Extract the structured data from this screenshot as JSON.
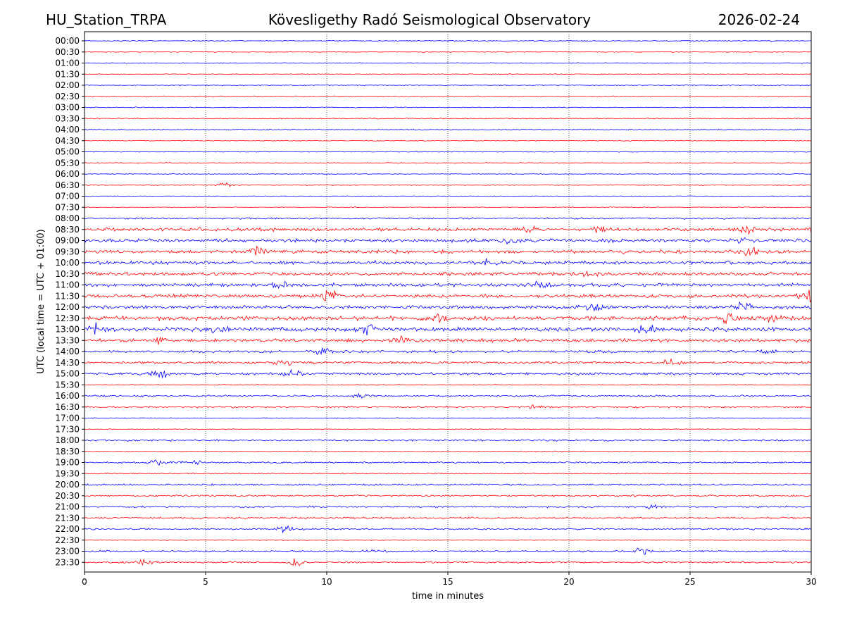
{
  "header": {
    "station": "HU_Station_TRPA",
    "observatory": "Kövesligethy Radó Seismological Observatory",
    "date": "2026-02-24"
  },
  "chart_data": {
    "type": "line",
    "title": "Kövesligethy Radó Seismological Observatory",
    "xlabel": "time in minutes",
    "ylabel": "UTC (local time = UTC + 01:00)",
    "xlim": [
      0,
      30
    ],
    "x_ticks": [
      "0",
      "5",
      "10",
      "15",
      "20",
      "25",
      "30"
    ],
    "x_tick_values": [
      0,
      5,
      10,
      15,
      20,
      25,
      30
    ],
    "grid": "vertical dotted lines at 5-minute ticks",
    "series_colors": [
      "#0000ff",
      "#ff0000"
    ],
    "row_labels": [
      "00:00",
      "00:30",
      "01:00",
      "01:30",
      "02:00",
      "02:30",
      "03:00",
      "03:30",
      "04:00",
      "04:30",
      "05:00",
      "05:30",
      "06:00",
      "06:30",
      "07:00",
      "07:30",
      "08:00",
      "08:30",
      "09:00",
      "09:30",
      "10:00",
      "10:30",
      "11:00",
      "11:30",
      "12:00",
      "12:30",
      "13:00",
      "13:30",
      "14:00",
      "14:30",
      "15:00",
      "15:30",
      "16:00",
      "16:30",
      "17:00",
      "17:30",
      "18:00",
      "18:30",
      "19:00",
      "19:30",
      "20:00",
      "20:30",
      "21:00",
      "21:30",
      "22:00",
      "22:30",
      "23:00",
      "23:30"
    ],
    "row_activity": [
      1,
      1,
      1,
      1,
      1,
      1,
      1,
      1,
      1,
      1,
      1,
      1,
      1,
      1,
      1,
      1,
      2,
      4,
      4,
      4,
      4,
      4,
      4,
      4,
      4,
      5,
      5,
      4,
      3,
      3,
      3,
      1,
      2,
      2,
      1,
      1,
      2,
      1,
      2,
      1,
      2,
      2,
      2,
      2,
      2,
      1,
      2,
      2
    ],
    "bursts": [
      {
        "row": "06:30",
        "minute": 5.8,
        "amp": 4
      },
      {
        "row": "08:30",
        "minute": 18.3,
        "amp": 6
      },
      {
        "row": "08:30",
        "minute": 21.2,
        "amp": 5
      },
      {
        "row": "08:30",
        "minute": 27.3,
        "amp": 9
      },
      {
        "row": "08:30",
        "minute": 29.8,
        "amp": 9
      },
      {
        "row": "09:00",
        "minute": 17.5,
        "amp": 7
      },
      {
        "row": "09:00",
        "minute": 27.1,
        "amp": 6
      },
      {
        "row": "09:30",
        "minute": 7.1,
        "amp": 7
      },
      {
        "row": "09:30",
        "minute": 27.5,
        "amp": 7
      },
      {
        "row": "10:00",
        "minute": 16.7,
        "amp": 6
      },
      {
        "row": "10:30",
        "minute": 20.8,
        "amp": 6
      },
      {
        "row": "11:00",
        "minute": 8.0,
        "amp": 7
      },
      {
        "row": "11:00",
        "minute": 18.8,
        "amp": 7
      },
      {
        "row": "11:30",
        "minute": 10.0,
        "amp": 12
      },
      {
        "row": "11:30",
        "minute": 29.9,
        "amp": 9
      },
      {
        "row": "12:00",
        "minute": 21.1,
        "amp": 7
      },
      {
        "row": "12:00",
        "minute": 27.2,
        "amp": 8
      },
      {
        "row": "12:30",
        "minute": 14.5,
        "amp": 7
      },
      {
        "row": "12:30",
        "minute": 26.5,
        "amp": 8
      },
      {
        "row": "12:30",
        "minute": 28.4,
        "amp": 7
      },
      {
        "row": "13:00",
        "minute": 0.5,
        "amp": 10
      },
      {
        "row": "13:00",
        "minute": 5.4,
        "amp": 10
      },
      {
        "row": "13:00",
        "minute": 11.7,
        "amp": 9
      },
      {
        "row": "13:00",
        "minute": 23.2,
        "amp": 10
      },
      {
        "row": "13:30",
        "minute": 3.2,
        "amp": 7
      },
      {
        "row": "13:30",
        "minute": 13.1,
        "amp": 9
      },
      {
        "row": "14:00",
        "minute": 9.8,
        "amp": 7
      },
      {
        "row": "14:00",
        "minute": 28.1,
        "amp": 6
      },
      {
        "row": "14:30",
        "minute": 8.4,
        "amp": 6
      },
      {
        "row": "14:30",
        "minute": 24.2,
        "amp": 6
      },
      {
        "row": "15:00",
        "minute": 3.1,
        "amp": 7
      },
      {
        "row": "15:00",
        "minute": 8.6,
        "amp": 10
      },
      {
        "row": "16:00",
        "minute": 11.4,
        "amp": 5
      },
      {
        "row": "16:30",
        "minute": 18.5,
        "amp": 4
      },
      {
        "row": "19:00",
        "minute": 3.0,
        "amp": 5
      },
      {
        "row": "19:00",
        "minute": 4.5,
        "amp": 6
      },
      {
        "row": "21:00",
        "minute": 23.5,
        "amp": 5
      },
      {
        "row": "22:00",
        "minute": 8.3,
        "amp": 5
      },
      {
        "row": "23:00",
        "minute": 12.0,
        "amp": 5
      },
      {
        "row": "23:00",
        "minute": 23.0,
        "amp": 5
      },
      {
        "row": "23:30",
        "minute": 2.5,
        "amp": 5
      },
      {
        "row": "23:30",
        "minute": 8.7,
        "amp": 6
      }
    ]
  }
}
